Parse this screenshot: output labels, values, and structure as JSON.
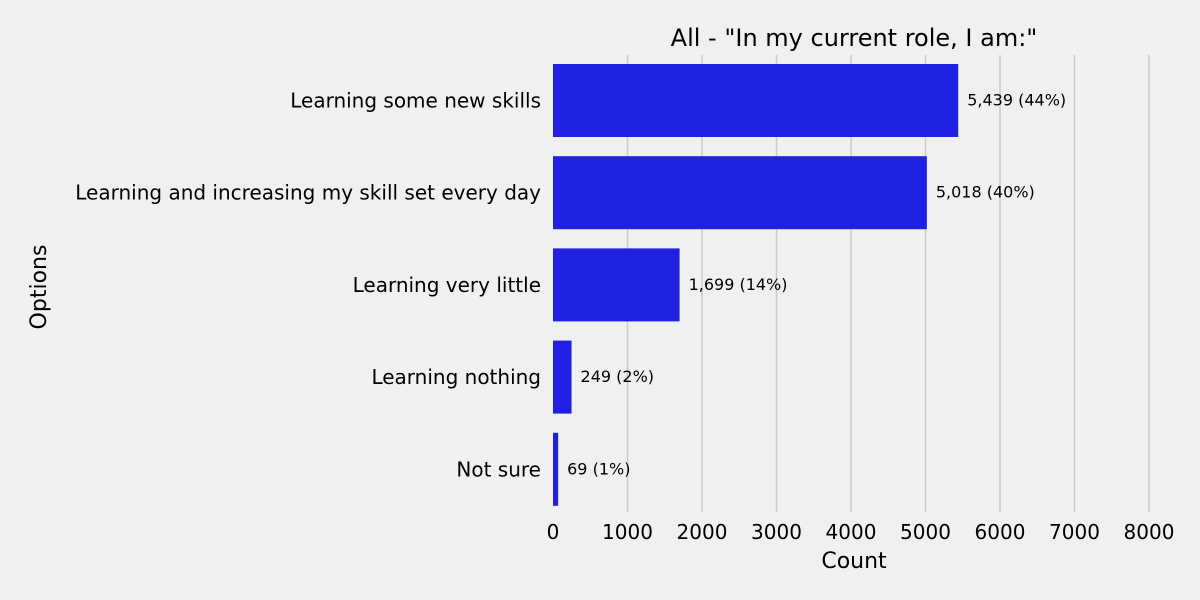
{
  "chart_data": {
    "type": "bar",
    "orientation": "horizontal",
    "title": "All - \"In my current role, I am:\"",
    "xlabel": "Count",
    "ylabel": "Options",
    "xlim": [
      0,
      8300
    ],
    "xticks": [
      0,
      1000,
      2000,
      3000,
      4000,
      5000,
      6000,
      7000,
      8000
    ],
    "xtick_labels": [
      "0",
      "1000",
      "2000",
      "3000",
      "4000",
      "5000",
      "6000",
      "7000",
      "8000"
    ],
    "grid": "vertical",
    "bar_color": "#2020e0",
    "categories": [
      "Learning some new skills",
      "Learning and increasing my skill set every day",
      "Learning very little",
      "Learning nothing",
      "Not sure"
    ],
    "values": [
      5439,
      5018,
      1699,
      249,
      69
    ],
    "data_labels": [
      "5,439 (44%)",
      "5,018 (40%)",
      "1,699 (14%)",
      "249 (2%)",
      "69 (1%)"
    ]
  }
}
